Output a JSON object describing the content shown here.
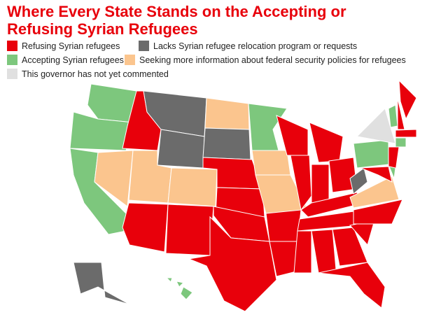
{
  "title": "Where Every State Stands on the Accepting or Refusing Syrian Refugees",
  "legend": [
    {
      "label": "Refusing Syrian refugees",
      "color": "#e8000b"
    },
    {
      "label": "Lacks Syrian refugee relocation program or requests",
      "color": "#6b6b6b"
    },
    {
      "label": "Accepting Syrian refugees",
      "color": "#7dc77d"
    },
    {
      "label": "Seeking more information about federal security policies for refugees",
      "color": "#fbc58e"
    },
    {
      "label": "This governor has not yet commented",
      "color": "#e0e0e0"
    }
  ]
}
